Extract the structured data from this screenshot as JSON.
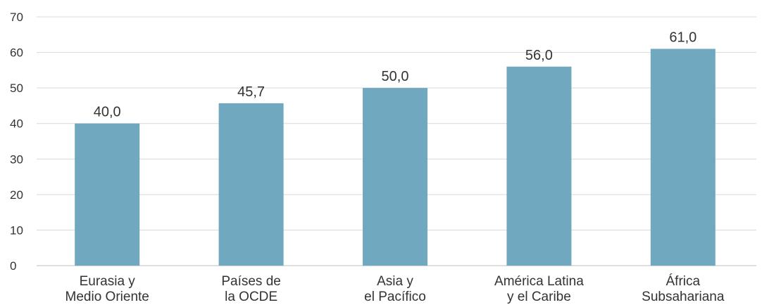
{
  "chart_data": {
    "type": "bar",
    "categories": [
      [
        "Eurasia y",
        "Medio Oriente"
      ],
      [
        "Países de",
        "la OCDE"
      ],
      [
        "Asia y",
        "el Pacífico"
      ],
      [
        "América Latina",
        "y el Caribe"
      ],
      [
        "África",
        "Subsahariana"
      ]
    ],
    "values": [
      40.0,
      45.7,
      50.0,
      56.0,
      61.0
    ],
    "value_labels": [
      "40,0",
      "45,7",
      "50,0",
      "56,0",
      "61,0"
    ],
    "title": "",
    "xlabel": "",
    "ylabel": "",
    "ylim": [
      0,
      70
    ],
    "yticks": [
      0,
      10,
      20,
      30,
      40,
      50,
      60,
      70
    ],
    "grid": true,
    "bar_color": "#70a8c0"
  }
}
